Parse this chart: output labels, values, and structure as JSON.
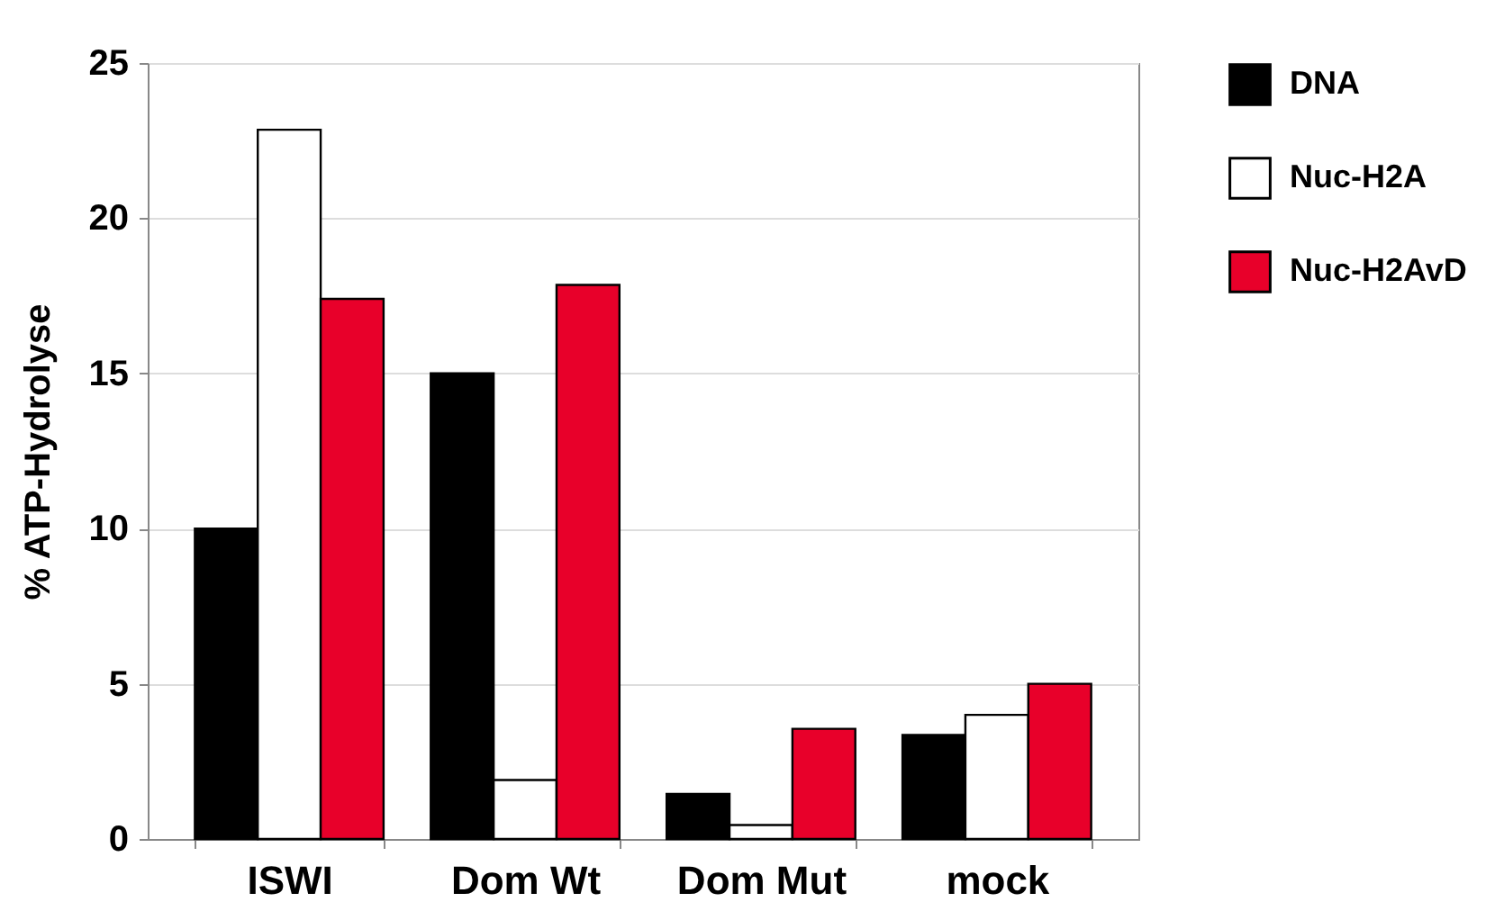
{
  "chart_data": {
    "type": "bar",
    "ylabel": "% ATP-Hydrolyse",
    "categories": [
      "ISWI",
      "Dom Wt",
      "Dom Mut",
      "mock"
    ],
    "series": [
      {
        "name": "DNA",
        "color": "#000000",
        "values": [
          10.0,
          15.0,
          1.45,
          3.35
        ]
      },
      {
        "name": "Nuc-H2A",
        "color": "#ffffff",
        "values": [
          22.85,
          1.9,
          0.45,
          4.0
        ]
      },
      {
        "name": "Nuc-H2AvD",
        "color": "#e8002a",
        "values": [
          17.4,
          17.85,
          3.55,
          5.0
        ]
      }
    ],
    "ylim": [
      0,
      25
    ],
    "yticks": [
      0,
      5,
      10,
      15,
      20,
      25
    ],
    "grid": "y",
    "legend": "right"
  }
}
